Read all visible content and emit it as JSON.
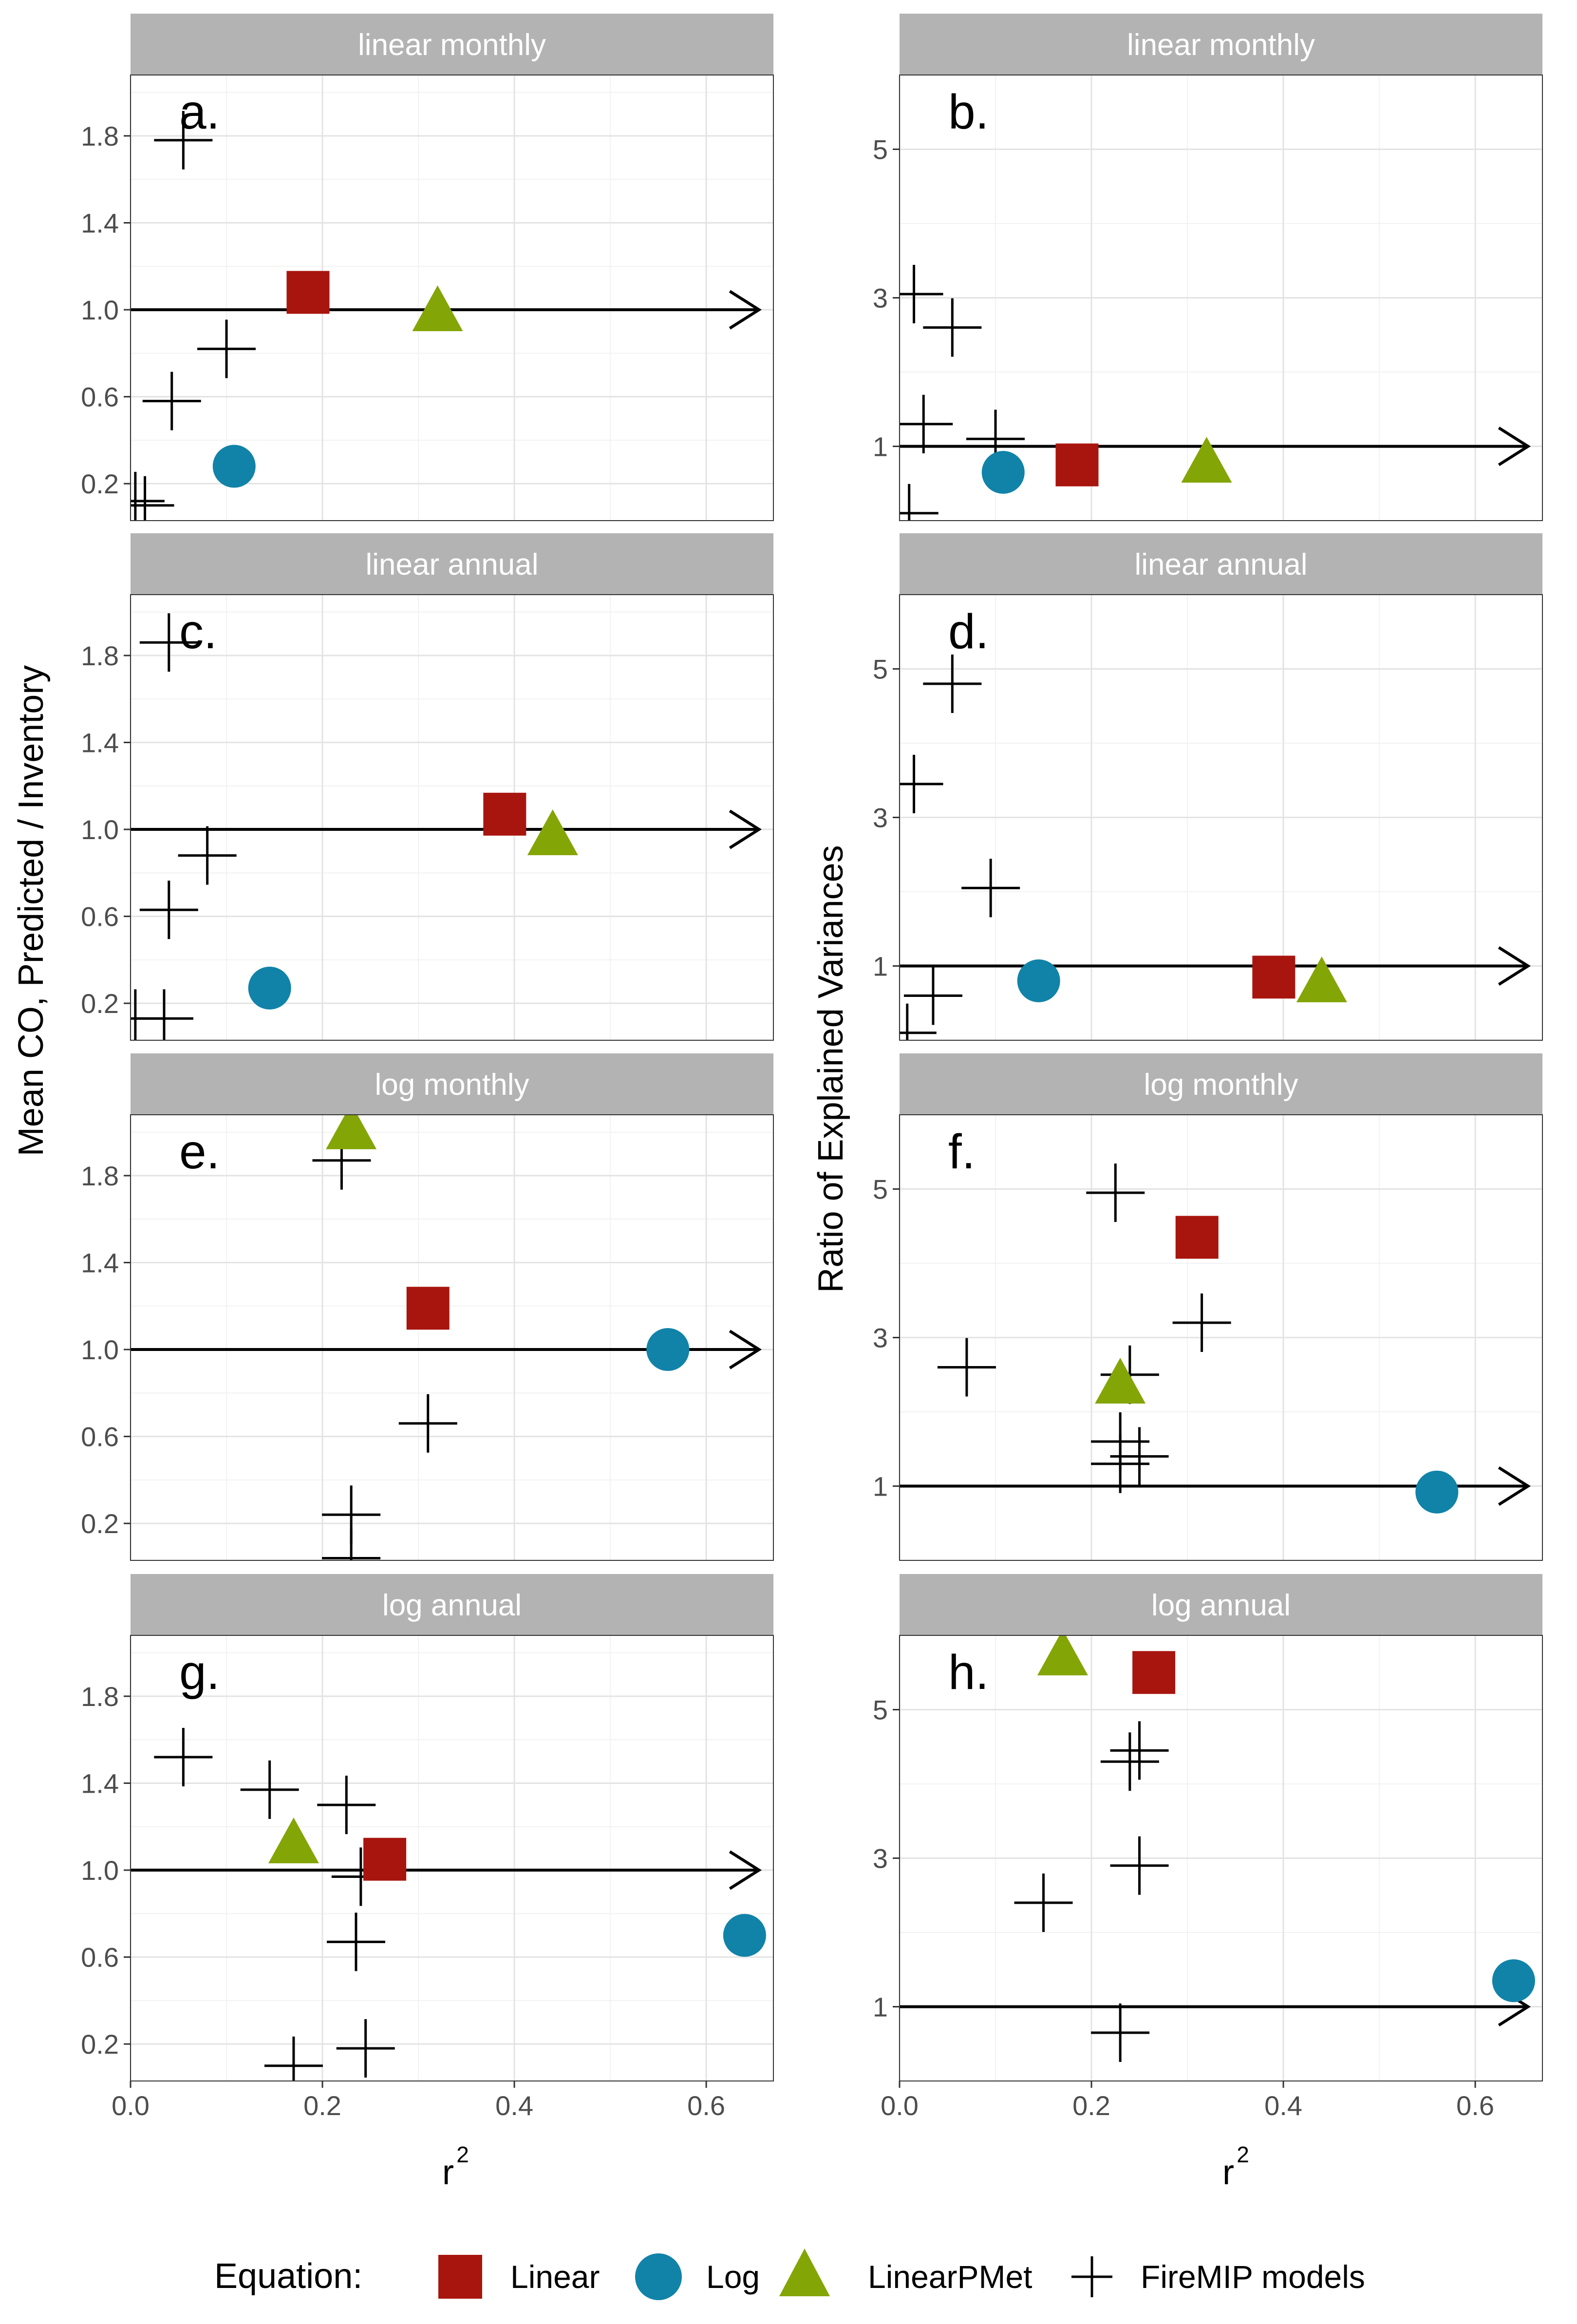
{
  "figure": {
    "y_title_left": "Mean CO, Predicted / Inventory",
    "y_title_right": "Ratio of Explained Variances",
    "x_title": "r",
    "x_title_sup": "2"
  },
  "legend": {
    "title": "Equation:",
    "items": [
      {
        "label": "Linear",
        "shape": "square",
        "color": "#A8150E"
      },
      {
        "label": "Log",
        "shape": "circle",
        "color": "#1183A8"
      },
      {
        "label": "LinearPMet",
        "shape": "triangle",
        "color": "#84A506"
      },
      {
        "label": "FireMIP models",
        "shape": "cross",
        "color": "#000000"
      }
    ]
  },
  "chart_data": [
    {
      "type": "scatter",
      "panel": "a.",
      "title": "linear monthly",
      "xlabel": "r²",
      "ylabel": "Mean CO, Predicted / Inventory",
      "xlim": [
        0,
        0.67
      ],
      "ylim": [
        0.03,
        2.08
      ],
      "xticks": [
        0.0,
        0.2,
        0.4,
        0.6
      ],
      "yticks": [
        0.2,
        0.6,
        1.0,
        1.4,
        1.8
      ],
      "reference": {
        "y": 1.0,
        "x_start": 0,
        "x_end": 0.655
      },
      "series": [
        {
          "name": "Linear",
          "points": [
            [
              0.185,
              1.08
            ]
          ]
        },
        {
          "name": "Log",
          "points": [
            [
              0.108,
              0.28
            ]
          ]
        },
        {
          "name": "LinearPMet",
          "points": [
            [
              0.32,
              1.0
            ]
          ]
        },
        {
          "name": "FireMIP models",
          "points": [
            [
              0.055,
              1.78
            ],
            [
              0.1,
              0.82
            ],
            [
              0.043,
              0.58
            ],
            [
              0.005,
              0.12
            ],
            [
              0.015,
              0.1
            ]
          ]
        }
      ]
    },
    {
      "type": "scatter",
      "panel": "b.",
      "title": "linear monthly",
      "xlabel": "r²",
      "ylabel": "Ratio of Explained Variances",
      "xlim": [
        0,
        0.67
      ],
      "ylim": [
        0,
        6
      ],
      "xticks": [
        0.0,
        0.2,
        0.4,
        0.6
      ],
      "yticks": [
        1,
        3,
        5
      ],
      "reference": {
        "y": 1.0,
        "x_start": 0,
        "x_end": 0.655
      },
      "series": [
        {
          "name": "Linear",
          "points": [
            [
              0.185,
              0.75
            ]
          ]
        },
        {
          "name": "Log",
          "points": [
            [
              0.108,
              0.65
            ]
          ]
        },
        {
          "name": "LinearPMet",
          "points": [
            [
              0.32,
              0.8
            ]
          ]
        },
        {
          "name": "FireMIP models",
          "points": [
            [
              0.015,
              3.05
            ],
            [
              0.055,
              2.6
            ],
            [
              0.025,
              1.3
            ],
            [
              0.1,
              1.1
            ],
            [
              0.01,
              0.1
            ]
          ]
        }
      ]
    },
    {
      "type": "scatter",
      "panel": "c.",
      "title": "linear annual",
      "xlabel": "r²",
      "ylabel": "Mean CO, Predicted / Inventory",
      "xlim": [
        0,
        0.67
      ],
      "ylim": [
        0.03,
        2.08
      ],
      "xticks": [
        0.0,
        0.2,
        0.4,
        0.6
      ],
      "yticks": [
        0.2,
        0.6,
        1.0,
        1.4,
        1.8
      ],
      "reference": {
        "y": 1.0,
        "x_start": 0,
        "x_end": 0.655
      },
      "series": [
        {
          "name": "Linear",
          "points": [
            [
              0.39,
              1.07
            ]
          ]
        },
        {
          "name": "Log",
          "points": [
            [
              0.145,
              0.27
            ]
          ]
        },
        {
          "name": "LinearPMet",
          "points": [
            [
              0.44,
              0.98
            ]
          ]
        },
        {
          "name": "FireMIP models",
          "points": [
            [
              0.04,
              1.86
            ],
            [
              0.08,
              0.88
            ],
            [
              0.04,
              0.63
            ],
            [
              0.005,
              0.13
            ],
            [
              0.035,
              0.13
            ]
          ]
        }
      ]
    },
    {
      "type": "scatter",
      "panel": "d.",
      "title": "linear annual",
      "xlabel": "r²",
      "ylabel": "Ratio of Explained Variances",
      "xlim": [
        0,
        0.67
      ],
      "ylim": [
        0,
        6
      ],
      "xticks": [
        0.0,
        0.2,
        0.4,
        0.6
      ],
      "yticks": [
        1,
        3,
        5
      ],
      "reference": {
        "y": 1.0,
        "x_start": 0,
        "x_end": 0.655
      },
      "series": [
        {
          "name": "Linear",
          "points": [
            [
              0.39,
              0.85
            ]
          ]
        },
        {
          "name": "Log",
          "points": [
            [
              0.145,
              0.8
            ]
          ]
        },
        {
          "name": "LinearPMet",
          "points": [
            [
              0.44,
              0.8
            ]
          ]
        },
        {
          "name": "FireMIP models",
          "points": [
            [
              0.055,
              4.8
            ],
            [
              0.015,
              3.45
            ],
            [
              0.095,
              2.05
            ],
            [
              0.035,
              0.6
            ],
            [
              0.008,
              0.1
            ]
          ]
        }
      ]
    },
    {
      "type": "scatter",
      "panel": "e.",
      "title": "log monthly",
      "xlabel": "r²",
      "ylabel": "Mean CO, Predicted / Inventory",
      "xlim": [
        0,
        0.67
      ],
      "ylim": [
        0.03,
        2.08
      ],
      "xticks": [
        0.0,
        0.2,
        0.4,
        0.6
      ],
      "yticks": [
        0.2,
        0.6,
        1.0,
        1.4,
        1.8
      ],
      "reference": {
        "y": 1.0,
        "x_start": 0,
        "x_end": 0.655
      },
      "series": [
        {
          "name": "Linear",
          "points": [
            [
              0.31,
              1.19
            ]
          ]
        },
        {
          "name": "Log",
          "points": [
            [
              0.56,
              1.0
            ]
          ]
        },
        {
          "name": "LinearPMet",
          "points": [
            [
              0.23,
              2.02
            ]
          ]
        },
        {
          "name": "FireMIP models",
          "points": [
            [
              0.22,
              1.87
            ],
            [
              0.31,
              0.66
            ],
            [
              0.23,
              0.24
            ],
            [
              0.23,
              0.04
            ]
          ]
        }
      ]
    },
    {
      "type": "scatter",
      "panel": "f.",
      "title": "log monthly",
      "xlabel": "r²",
      "ylabel": "Ratio of Explained Variances",
      "xlim": [
        0,
        0.67
      ],
      "ylim": [
        0,
        6
      ],
      "xticks": [
        0.0,
        0.2,
        0.4,
        0.6
      ],
      "yticks": [
        1,
        3,
        5
      ],
      "reference": {
        "y": 1.0,
        "x_start": 0,
        "x_end": 0.655
      },
      "series": [
        {
          "name": "Linear",
          "points": [
            [
              0.31,
              4.35
            ]
          ]
        },
        {
          "name": "Log",
          "points": [
            [
              0.56,
              0.92
            ]
          ]
        },
        {
          "name": "LinearPMet",
          "points": [
            [
              0.23,
              2.4
            ]
          ]
        },
        {
          "name": "FireMIP models",
          "points": [
            [
              0.225,
              4.95
            ],
            [
              0.315,
              3.2
            ],
            [
              0.07,
              2.6
            ],
            [
              0.24,
              2.5
            ],
            [
              0.23,
              1.6
            ],
            [
              0.25,
              1.4
            ],
            [
              0.23,
              1.3
            ]
          ]
        }
      ]
    },
    {
      "type": "scatter",
      "panel": "g.",
      "title": "log annual",
      "xlabel": "r²",
      "ylabel": "Mean CO, Predicted / Inventory",
      "xlim": [
        0,
        0.67
      ],
      "ylim": [
        0.03,
        2.08
      ],
      "xticks": [
        0.0,
        0.2,
        0.4,
        0.6
      ],
      "yticks": [
        0.2,
        0.6,
        1.0,
        1.4,
        1.8
      ],
      "reference": {
        "y": 1.0,
        "x_start": 0,
        "x_end": 0.655
      },
      "series": [
        {
          "name": "Linear",
          "points": [
            [
              0.265,
              1.05
            ]
          ]
        },
        {
          "name": "Log",
          "points": [
            [
              0.64,
              0.7
            ]
          ]
        },
        {
          "name": "LinearPMet",
          "points": [
            [
              0.17,
              1.13
            ]
          ]
        },
        {
          "name": "FireMIP models",
          "points": [
            [
              0.055,
              1.52
            ],
            [
              0.145,
              1.37
            ],
            [
              0.225,
              1.3
            ],
            [
              0.24,
              0.97
            ],
            [
              0.235,
              0.67
            ],
            [
              0.245,
              0.18
            ],
            [
              0.17,
              0.1
            ]
          ]
        }
      ]
    },
    {
      "type": "scatter",
      "panel": "h.",
      "title": "log annual",
      "xlabel": "r²",
      "ylabel": "Ratio of Explained Variances",
      "xlim": [
        0,
        0.67
      ],
      "ylim": [
        0,
        6
      ],
      "xticks": [
        0.0,
        0.2,
        0.4,
        0.6
      ],
      "yticks": [
        1,
        3,
        5
      ],
      "reference": {
        "y": 1.0,
        "x_start": 0,
        "x_end": 0.655
      },
      "series": [
        {
          "name": "Linear",
          "points": [
            [
              0.265,
              5.5
            ]
          ]
        },
        {
          "name": "Log",
          "points": [
            [
              0.64,
              1.35
            ]
          ]
        },
        {
          "name": "LinearPMet",
          "points": [
            [
              0.17,
              5.75
            ]
          ]
        },
        {
          "name": "FireMIP models",
          "points": [
            [
              0.25,
              4.45
            ],
            [
              0.24,
              4.3
            ],
            [
              0.25,
              2.9
            ],
            [
              0.15,
              2.4
            ],
            [
              0.23,
              0.65
            ]
          ]
        }
      ]
    }
  ]
}
